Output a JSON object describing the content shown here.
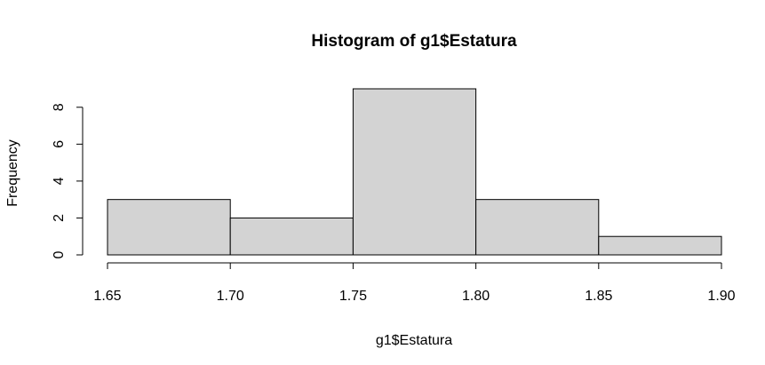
{
  "chart_data": {
    "type": "bar",
    "title": "Histogram of g1$Estatura",
    "xlabel": "g1$Estatura",
    "ylabel": "Frequency",
    "bins": [
      {
        "from": 1.65,
        "to": 1.7,
        "count": 3
      },
      {
        "from": 1.7,
        "to": 1.75,
        "count": 2
      },
      {
        "from": 1.75,
        "to": 1.8,
        "count": 9
      },
      {
        "from": 1.8,
        "to": 1.85,
        "count": 3
      },
      {
        "from": 1.85,
        "to": 1.9,
        "count": 1
      }
    ],
    "xlim": [
      1.65,
      1.9
    ],
    "ylim": [
      0,
      9
    ],
    "x_ticks": [
      "1.65",
      "1.70",
      "1.75",
      "1.80",
      "1.85",
      "1.90"
    ],
    "y_ticks": [
      "0",
      "2",
      "4",
      "6",
      "8"
    ],
    "bar_color": "#d3d3d3",
    "grid": false,
    "legend": "none"
  }
}
